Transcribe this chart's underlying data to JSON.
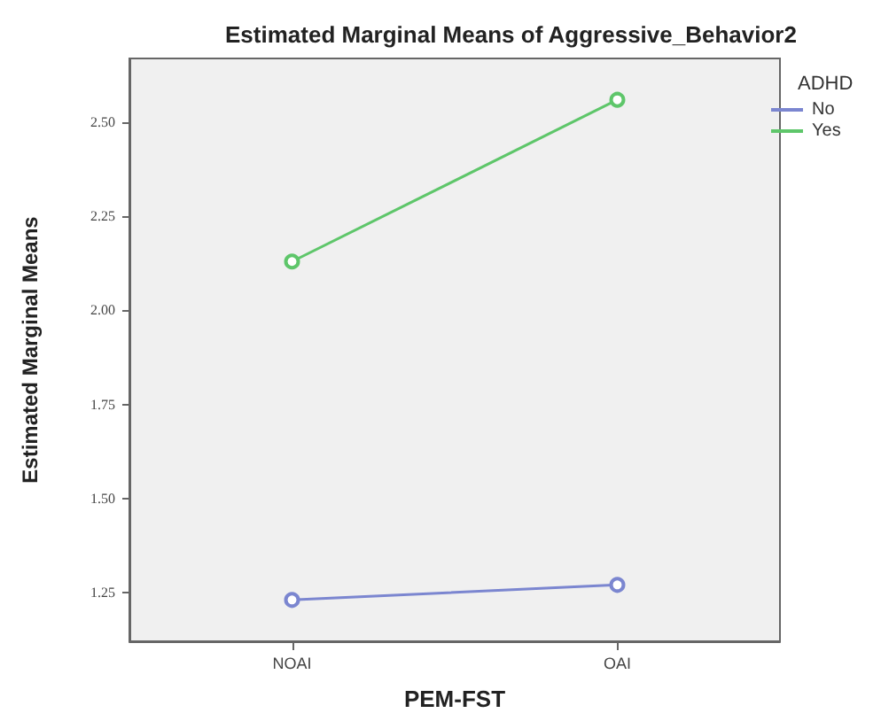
{
  "chart_data": {
    "type": "line",
    "title": "Estimated Marginal Means of Aggressive_Behavior2",
    "xlabel": "PEM-FST",
    "ylabel": "Estimated Marginal Means",
    "legend_title": "ADHD",
    "categories": [
      "NOAI",
      "OAI"
    ],
    "series": [
      {
        "name": "No",
        "color": "#7b86d0",
        "values": [
          1.23,
          1.27
        ]
      },
      {
        "name": "Yes",
        "color": "#5ec66a",
        "values": [
          2.13,
          2.56
        ]
      }
    ],
    "ylim": [
      1.12,
      2.67
    ],
    "yticks": [
      {
        "value": 1.25,
        "label": "1.25"
      },
      {
        "value": 1.5,
        "label": "1.50"
      },
      {
        "value": 1.75,
        "label": "1.75"
      },
      {
        "value": 2,
        "label": "2.00"
      },
      {
        "value": 2.25,
        "label": "2.25"
      },
      {
        "value": 2.5,
        "label": "2.50"
      }
    ],
    "grid": false,
    "legend": "top right",
    "marker": "circle",
    "line_style": "solid"
  }
}
